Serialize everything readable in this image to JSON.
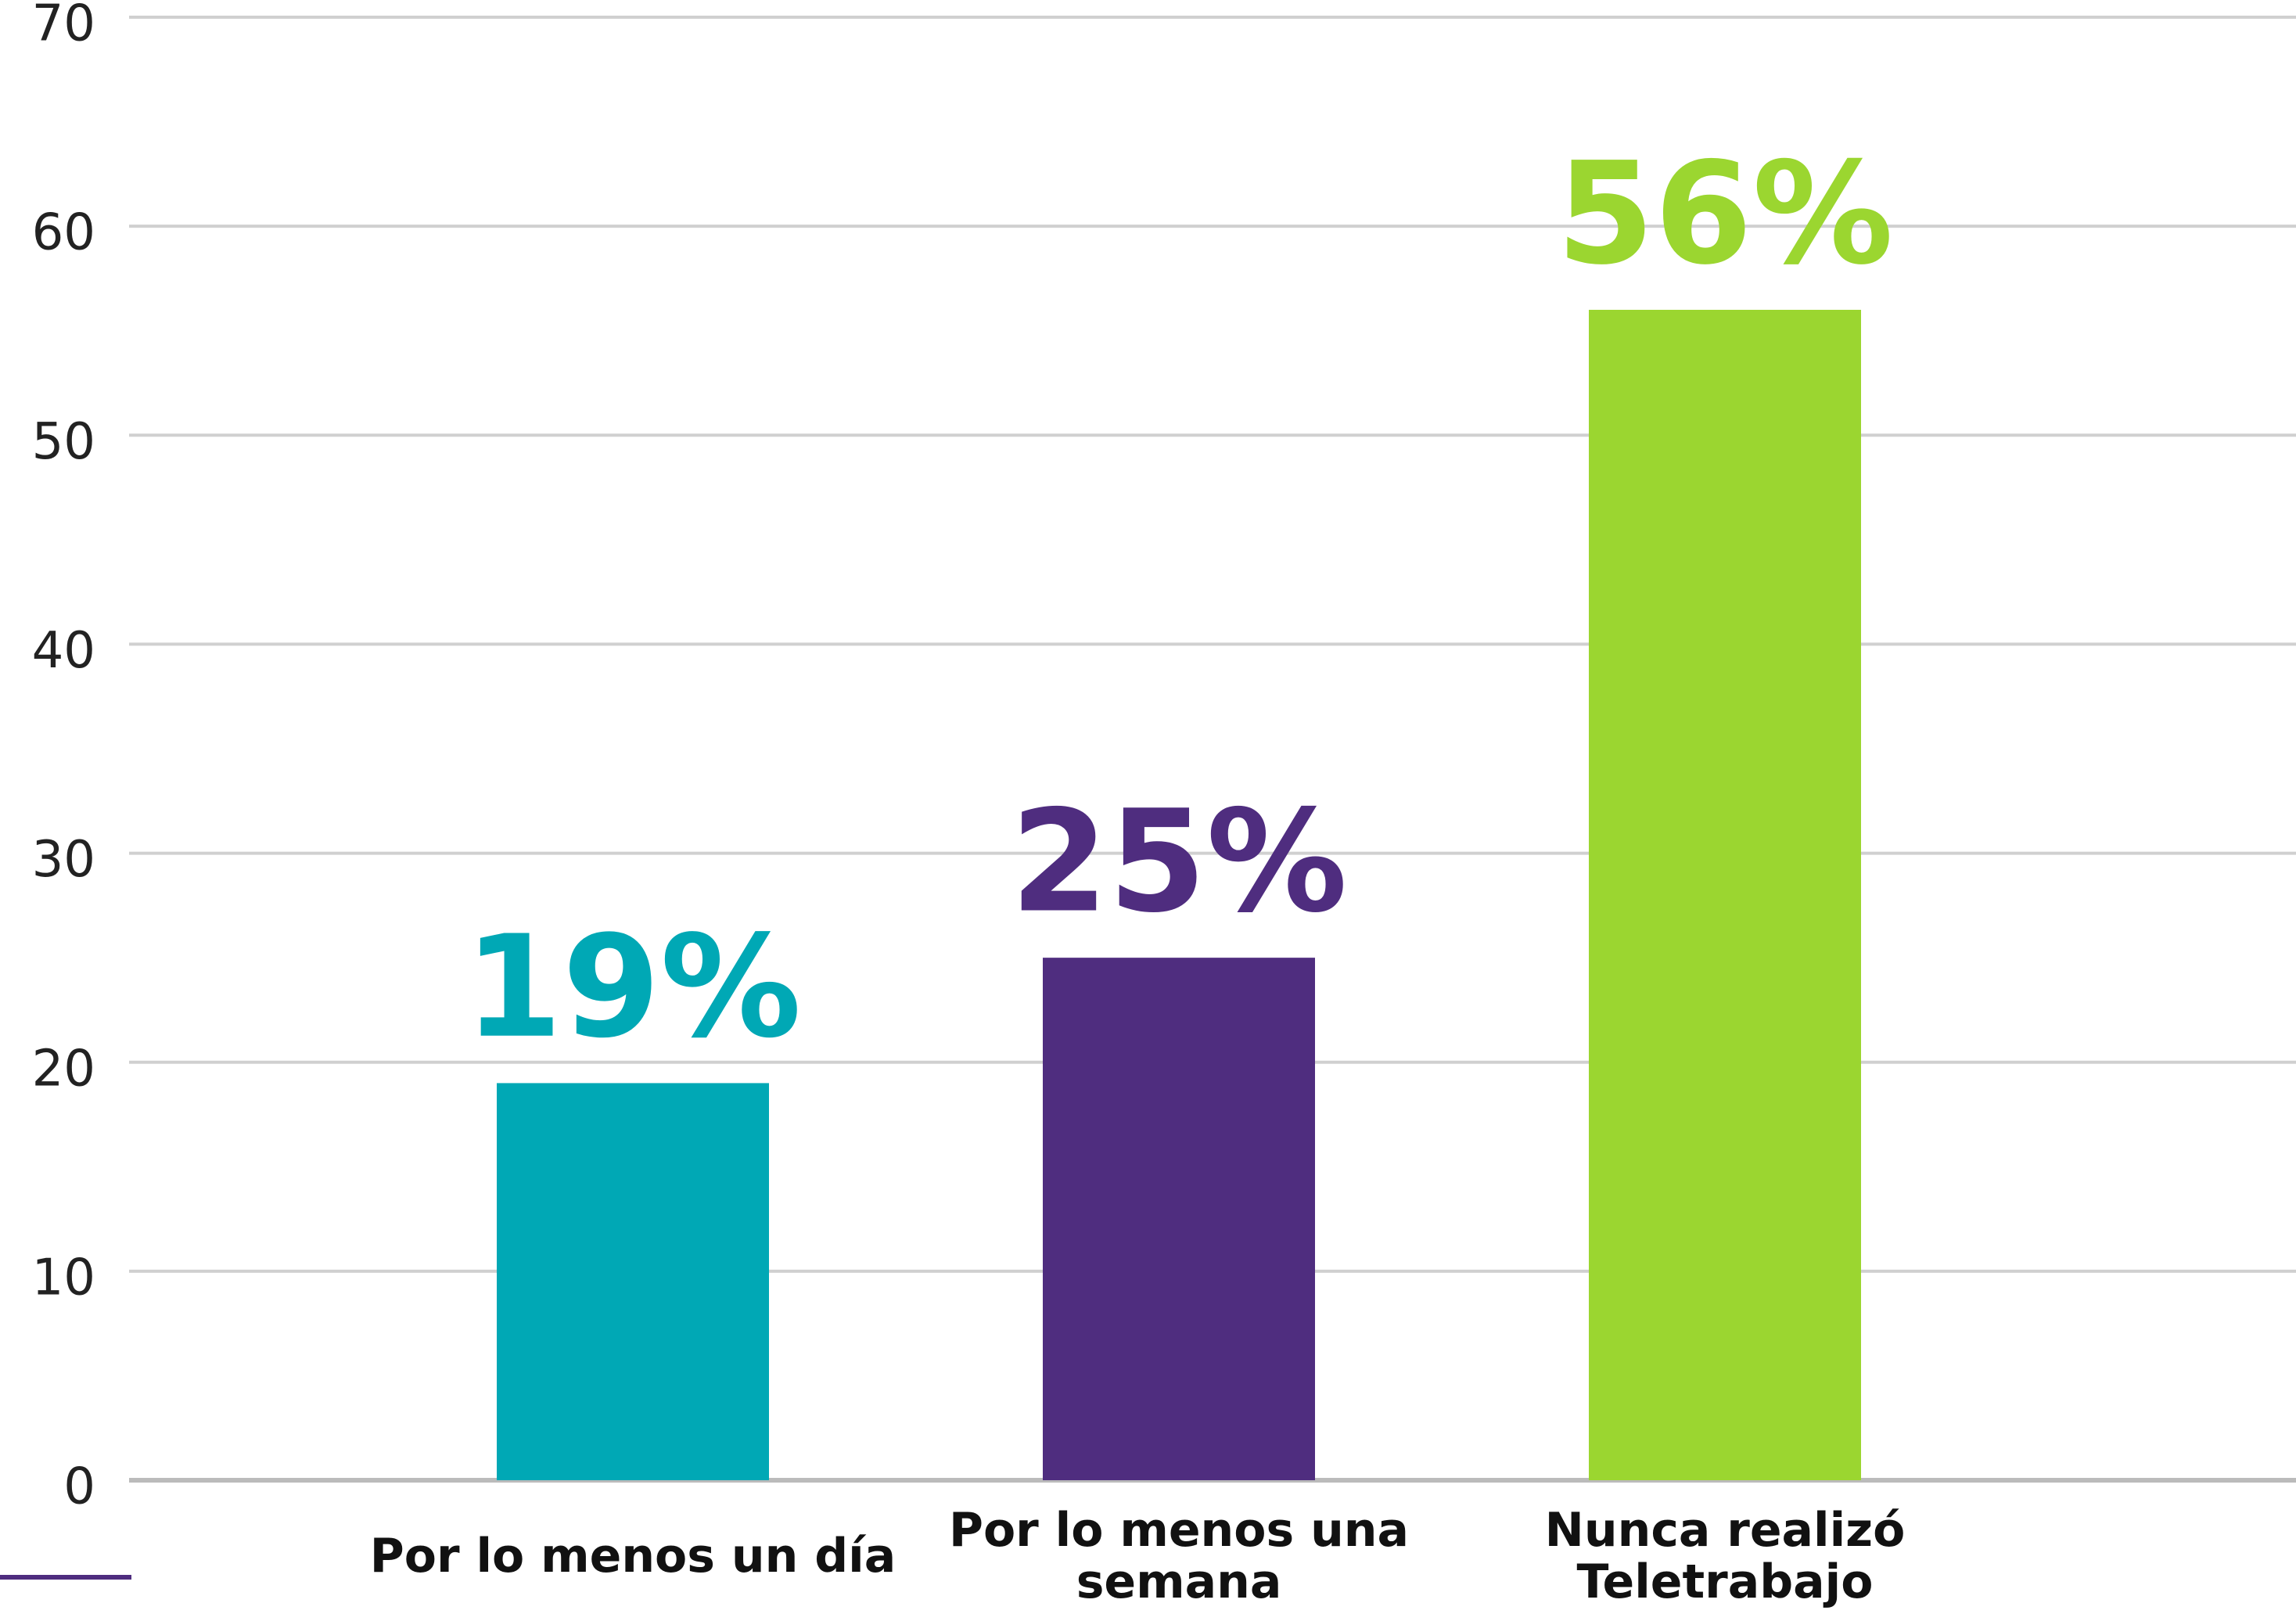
{
  "chart_data": {
    "type": "bar",
    "categories": [
      "Por lo menos un día",
      "Por lo menos una semana",
      "Nunca realizó Teletrabajo"
    ],
    "values": [
      19,
      25,
      56
    ],
    "value_labels": [
      "19%",
      "25%",
      "56%"
    ],
    "colors": [
      "#00a8b5",
      "#4f2d7f",
      "#9bd630"
    ],
    "ylim": [
      0,
      70
    ],
    "yticks": [
      0,
      10,
      20,
      30,
      40,
      50,
      60,
      70
    ],
    "grid": true
  }
}
